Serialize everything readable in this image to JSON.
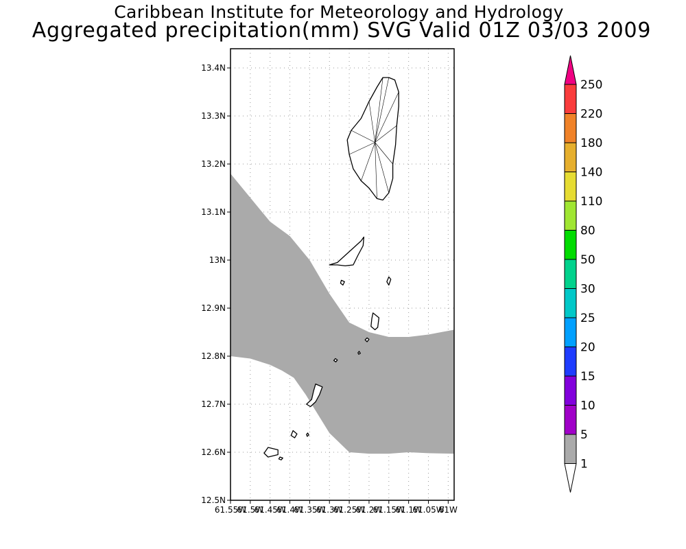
{
  "title": {
    "line1": "Caribbean Institute for Meteorology and Hydrology",
    "line2": "Aggregated precipitation(mm) SVG Valid 01Z 03/03 2009"
  },
  "map": {
    "lat_min": 12.5,
    "lat_max": 13.44,
    "lon_min": -61.55,
    "lon_max": -60.985,
    "lat_ticks": [
      {
        "value": 12.5,
        "label": "12.5N"
      },
      {
        "value": 12.6,
        "label": "12.6N"
      },
      {
        "value": 12.7,
        "label": "12.7N"
      },
      {
        "value": 12.8,
        "label": "12.8N"
      },
      {
        "value": 12.9,
        "label": "12.9N"
      },
      {
        "value": 13.0,
        "label": "13N"
      },
      {
        "value": 13.1,
        "label": "13.1N"
      },
      {
        "value": 13.2,
        "label": "13.2N"
      },
      {
        "value": 13.3,
        "label": "13.3N"
      },
      {
        "value": 13.4,
        "label": "13.4N"
      }
    ],
    "lon_ticks": [
      {
        "value": -61.55,
        "label": "61.55W"
      },
      {
        "value": -61.5,
        "label": "61.5W"
      },
      {
        "value": -61.45,
        "label": "61.45W"
      },
      {
        "value": -61.4,
        "label": "61.4W"
      },
      {
        "value": -61.35,
        "label": "61.35W"
      },
      {
        "value": -61.3,
        "label": "61.3W"
      },
      {
        "value": -61.25,
        "label": "61.25W"
      },
      {
        "value": -61.2,
        "label": "61.2W"
      },
      {
        "value": -61.15,
        "label": "61.15W"
      },
      {
        "value": -61.1,
        "label": "61.1W"
      },
      {
        "value": -61.05,
        "label": "61.05W"
      },
      {
        "value": -61.0,
        "label": "61W"
      }
    ],
    "grid": true,
    "precip_band": {
      "category": "1-5 mm",
      "color": "#aaaaaa",
      "north_edge": [
        [
          -61.55,
          13.18
        ],
        [
          -61.5,
          13.13
        ],
        [
          -61.45,
          13.08
        ],
        [
          -61.4,
          13.05
        ],
        [
          -61.35,
          13.0
        ],
        [
          -61.3,
          12.93
        ],
        [
          -61.25,
          12.87
        ],
        [
          -61.2,
          12.85
        ],
        [
          -61.15,
          12.84
        ],
        [
          -61.1,
          12.84
        ],
        [
          -61.05,
          12.845
        ],
        [
          -60.985,
          12.855
        ]
      ],
      "south_edge": [
        [
          -60.985,
          12.597
        ],
        [
          -61.05,
          12.598
        ],
        [
          -61.1,
          12.6
        ],
        [
          -61.15,
          12.597
        ],
        [
          -61.2,
          12.597
        ],
        [
          -61.25,
          12.6
        ],
        [
          -61.3,
          12.64
        ],
        [
          -61.33,
          12.68
        ],
        [
          -61.36,
          12.72
        ],
        [
          -61.39,
          12.755
        ],
        [
          -61.42,
          12.77
        ],
        [
          -61.45,
          12.782
        ],
        [
          -61.5,
          12.795
        ],
        [
          -61.55,
          12.8
        ]
      ]
    },
    "islands": [
      {
        "name": "St. Vincent",
        "outline": [
          [
            -61.15,
            13.38
          ],
          [
            -61.135,
            13.375
          ],
          [
            -61.125,
            13.35
          ],
          [
            -61.125,
            13.32
          ],
          [
            -61.13,
            13.28
          ],
          [
            -61.133,
            13.24
          ],
          [
            -61.14,
            13.2
          ],
          [
            -61.14,
            13.17
          ],
          [
            -61.15,
            13.14
          ],
          [
            -61.165,
            13.125
          ],
          [
            -61.18,
            13.128
          ],
          [
            -61.2,
            13.15
          ],
          [
            -61.22,
            13.165
          ],
          [
            -61.24,
            13.19
          ],
          [
            -61.25,
            13.22
          ],
          [
            -61.255,
            13.25
          ],
          [
            -61.245,
            13.27
          ],
          [
            -61.22,
            13.295
          ],
          [
            -61.2,
            13.33
          ],
          [
            -61.18,
            13.36
          ],
          [
            -61.165,
            13.38
          ]
        ]
      },
      {
        "name": "Bequia",
        "outline": [
          [
            -61.3,
            12.99
          ],
          [
            -61.28,
            12.995
          ],
          [
            -61.26,
            13.01
          ],
          [
            -61.24,
            13.025
          ],
          [
            -61.22,
            13.04
          ],
          [
            -61.213,
            13.048
          ],
          [
            -61.215,
            13.03
          ],
          [
            -61.228,
            13.01
          ],
          [
            -61.24,
            12.99
          ],
          [
            -61.26,
            12.988
          ],
          [
            -61.28,
            12.99
          ]
        ]
      },
      {
        "name": "Mustique",
        "outline": [
          [
            -61.19,
            12.89
          ],
          [
            -61.175,
            12.88
          ],
          [
            -61.178,
            12.86
          ],
          [
            -61.185,
            12.855
          ],
          [
            -61.195,
            12.862
          ],
          [
            -61.193,
            12.878
          ]
        ]
      },
      {
        "name": "Canouan",
        "outline": [
          [
            -61.335,
            12.742
          ],
          [
            -61.318,
            12.736
          ],
          [
            -61.325,
            12.72
          ],
          [
            -61.335,
            12.705
          ],
          [
            -61.348,
            12.695
          ],
          [
            -61.358,
            12.7
          ],
          [
            -61.345,
            12.71
          ],
          [
            -61.34,
            12.728
          ]
        ]
      },
      {
        "name": "Union Island",
        "outline": [
          [
            -61.455,
            12.61
          ],
          [
            -61.43,
            12.605
          ],
          [
            -61.43,
            12.595
          ],
          [
            -61.455,
            12.59
          ],
          [
            -61.465,
            12.598
          ]
        ]
      },
      {
        "name": "Baliceaux",
        "outline": [
          [
            -61.15,
            12.965
          ],
          [
            -61.145,
            12.96
          ],
          [
            -61.15,
            12.948
          ],
          [
            -61.155,
            12.955
          ]
        ]
      },
      {
        "name": "Isle a Quatre",
        "outline": [
          [
            -61.27,
            12.958
          ],
          [
            -61.262,
            12.955
          ],
          [
            -61.266,
            12.948
          ],
          [
            -61.272,
            12.952
          ]
        ]
      },
      {
        "name": "Savan",
        "outline": [
          [
            -61.205,
            12.838
          ],
          [
            -61.2,
            12.835
          ],
          [
            -61.205,
            12.83
          ],
          [
            -61.21,
            12.834
          ]
        ]
      },
      {
        "name": "Mayreau",
        "outline": [
          [
            -61.392,
            12.645
          ],
          [
            -61.382,
            12.638
          ],
          [
            -61.388,
            12.63
          ],
          [
            -61.397,
            12.635
          ]
        ]
      },
      {
        "name": "Petit St. Vincent",
        "outline": [
          [
            -61.285,
            12.795
          ],
          [
            -61.28,
            12.792
          ],
          [
            -61.284,
            12.788
          ],
          [
            -61.289,
            12.791
          ]
        ]
      },
      {
        "name": "Tobago Cays",
        "outline": [
          [
            -61.355,
            12.64
          ],
          [
            -61.352,
            12.636
          ],
          [
            -61.356,
            12.633
          ],
          [
            -61.358,
            12.637
          ]
        ]
      },
      {
        "name": "Palm Island",
        "outline": [
          [
            -61.425,
            12.59
          ],
          [
            -61.418,
            12.588
          ],
          [
            -61.422,
            12.584
          ],
          [
            -61.428,
            12.586
          ]
        ]
      },
      {
        "name": "Pigeon Island",
        "outline": [
          [
            -61.225,
            12.81
          ],
          [
            -61.222,
            12.806
          ],
          [
            -61.226,
            12.804
          ],
          [
            -61.228,
            12.807
          ]
        ]
      }
    ]
  },
  "colorbar": {
    "labels": [
      "1",
      "5",
      "10",
      "15",
      "20",
      "25",
      "30",
      "50",
      "80",
      "110",
      "140",
      "180",
      "220",
      "250"
    ],
    "colors": [
      "#aaaaaa",
      "#a000c8",
      "#8200dc",
      "#1e3cff",
      "#00a0ff",
      "#00c8c8",
      "#00d28c",
      "#00dc00",
      "#a0e632",
      "#e6dc32",
      "#e6af2d",
      "#f08228",
      "#fa3c3c",
      "#f00082"
    ],
    "under_color": "#ffffff"
  }
}
